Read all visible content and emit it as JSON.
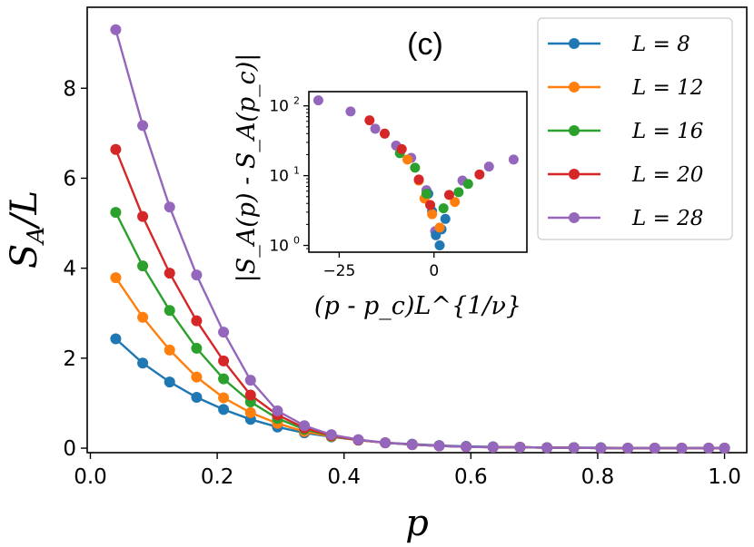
{
  "chart_data": [
    {
      "type": "line",
      "panel_label": "(c)",
      "xlabel": "p",
      "ylabel": "S_A/L",
      "ylabel_parts": {
        "main": "S",
        "sub": "A",
        "rest": "/L"
      },
      "xlim": [
        -0.005,
        1.035
      ],
      "ylim": [
        -0.1,
        9.8
      ],
      "xticks": [
        0.0,
        0.2,
        0.4,
        0.6,
        0.8,
        1.0
      ],
      "xtick_labels": [
        "0.0",
        "0.2",
        "0.4",
        "0.6",
        "0.8",
        "1.0"
      ],
      "yticks": [
        0,
        2,
        4,
        6,
        8
      ],
      "ytick_labels": [
        "0",
        "2",
        "4",
        "6",
        "8"
      ],
      "x": [
        0.04,
        0.0825,
        0.125,
        0.1675,
        0.21,
        0.2525,
        0.295,
        0.3375,
        0.38,
        0.4225,
        0.465,
        0.5075,
        0.55,
        0.5925,
        0.635,
        0.6775,
        0.72,
        0.7625,
        0.805,
        0.8475,
        0.89,
        0.9325,
        0.975,
        1.0
      ],
      "legend_position": "top-right",
      "series": [
        {
          "name": "L = 8",
          "legend_label": "L = 8",
          "color": "#1f77b4",
          "values": [
            2.43,
            1.89,
            1.47,
            1.13,
            0.86,
            0.64,
            0.47,
            0.34,
            0.25,
            0.18,
            0.12,
            0.09,
            0.06,
            0.04,
            0.03,
            0.02,
            0.01,
            0.01,
            0.01,
            0.0,
            0.0,
            0.0,
            0.0,
            0.0
          ]
        },
        {
          "name": "L = 12",
          "legend_label": "L = 12",
          "color": "#ff7f0e",
          "values": [
            3.79,
            2.91,
            2.18,
            1.58,
            1.12,
            0.79,
            0.55,
            0.37,
            0.26,
            0.18,
            0.12,
            0.08,
            0.05,
            0.03,
            0.02,
            0.02,
            0.01,
            0.01,
            0.0,
            0.0,
            0.0,
            0.0,
            0.0,
            0.0
          ]
        },
        {
          "name": "L = 16",
          "legend_label": "L = 16",
          "color": "#2ca02c",
          "values": [
            5.24,
            4.05,
            3.06,
            2.22,
            1.54,
            1.03,
            0.66,
            0.42,
            0.27,
            0.18,
            0.12,
            0.08,
            0.05,
            0.03,
            0.02,
            0.02,
            0.01,
            0.01,
            0.0,
            0.0,
            0.0,
            0.0,
            0.0,
            0.0
          ]
        },
        {
          "name": "L = 20",
          "legend_label": "L = 20",
          "color": "#d62728",
          "values": [
            6.64,
            5.15,
            3.89,
            2.83,
            1.94,
            1.18,
            0.74,
            0.45,
            0.28,
            0.18,
            0.12,
            0.08,
            0.05,
            0.03,
            0.02,
            0.02,
            0.01,
            0.01,
            0.0,
            0.0,
            0.0,
            0.0,
            0.0,
            0.0
          ]
        },
        {
          "name": "L = 28",
          "legend_label": "L = 28",
          "color": "#9467bd",
          "values": [
            9.3,
            7.17,
            5.36,
            3.85,
            2.58,
            1.51,
            0.83,
            0.5,
            0.3,
            0.19,
            0.12,
            0.08,
            0.05,
            0.03,
            0.02,
            0.02,
            0.01,
            0.01,
            0.0,
            0.0,
            0.0,
            0.0,
            0.0,
            0.0
          ]
        }
      ]
    },
    {
      "type": "scatter",
      "name": "inset",
      "xlabel": "(p - p_c)L^{1/ν}",
      "ylabel": "|S_A(p) - S_A(p_c)|",
      "xscale": "linear",
      "yscale": "log",
      "xlim": [
        -33,
        24.5
      ],
      "ylim": [
        0.8,
        160
      ],
      "xticks": [
        -25,
        0
      ],
      "xtick_labels": [
        "−25",
        "0"
      ],
      "yticks": [
        1,
        10,
        100
      ],
      "ytick_labels": [
        {
          "base": "10",
          "exp": "0"
        },
        {
          "base": "10",
          "exp": "1"
        },
        {
          "base": "10",
          "exp": "2"
        }
      ],
      "series": [
        {
          "name": "L = 28",
          "color": "#9467bd",
          "points": [
            [
              -30.5,
              120
            ],
            [
              -22.0,
              83
            ],
            [
              -15.5,
              47
            ],
            [
              -10.0,
              27
            ],
            [
              -6.0,
              18
            ],
            [
              -2.0,
              6.2
            ],
            [
              0.3,
              1.6
            ],
            [
              7.5,
              8.5
            ],
            [
              14.5,
              13.5
            ],
            [
              21.0,
              17
            ]
          ]
        },
        {
          "name": "L = 8",
          "color": "#1f77b4",
          "points": [
            [
              -1.5,
              5.5
            ],
            [
              -0.5,
              3.1
            ],
            [
              0.5,
              1.4
            ],
            [
              1.5,
              1.0
            ],
            [
              2.0,
              1.7
            ],
            [
              3.0,
              2.4
            ]
          ]
        },
        {
          "name": "L = 12",
          "color": "#ff7f0e",
          "points": [
            [
              -7.0,
              17
            ],
            [
              -4.0,
              8.5
            ],
            [
              -2.5,
              4.7
            ],
            [
              -0.5,
              2.8
            ],
            [
              1.5,
              1.8
            ],
            [
              5.5,
              4.2
            ]
          ]
        },
        {
          "name": "L = 16",
          "color": "#2ca02c",
          "points": [
            [
              -9.0,
              21
            ],
            [
              -5.0,
              13
            ],
            [
              -2.0,
              5.5
            ],
            [
              2.5,
              3.4
            ],
            [
              6.5,
              5.8
            ],
            [
              9.0,
              7.6
            ]
          ]
        },
        {
          "name": "L = 20",
          "color": "#d62728",
          "points": [
            [
              -17.0,
              62
            ],
            [
              -13.0,
              40
            ],
            [
              -8.5,
              24
            ],
            [
              -4.0,
              8.8
            ],
            [
              -1.0,
              3.8
            ],
            [
              4.0,
              5.3
            ],
            [
              12.0,
              10.4
            ]
          ]
        }
      ]
    }
  ]
}
